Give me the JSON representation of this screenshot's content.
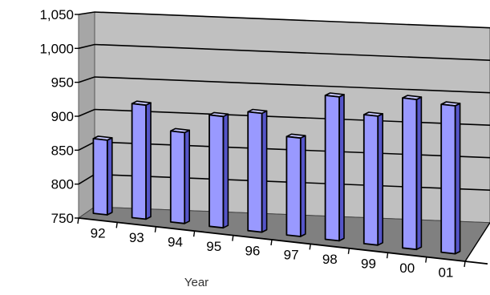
{
  "chart_data": {
    "type": "bar",
    "title": "",
    "xlabel": "Year",
    "ylabel": "",
    "categories": [
      "92",
      "93",
      "94",
      "95",
      "96",
      "97",
      "98",
      "99",
      "00",
      "01"
    ],
    "values": [
      860,
      918,
      884,
      914,
      925,
      895,
      962,
      940,
      971,
      968
    ],
    "ylim": [
      750,
      1050
    ],
    "yticks": [
      750,
      800,
      850,
      900,
      950,
      1000,
      1050
    ],
    "ytick_labels": [
      "750",
      "800",
      "850",
      "900",
      "950",
      "1,000",
      "1,050"
    ],
    "grid": true,
    "legend": "none",
    "style": "3d-perspective-columns"
  },
  "colors": {
    "bar_front": "#9999ff",
    "bar_side": "#5555c8",
    "bar_top": "#c8c8ff",
    "wall": "#c0c0c0",
    "floor": "#808080",
    "grid": "#000000"
  }
}
